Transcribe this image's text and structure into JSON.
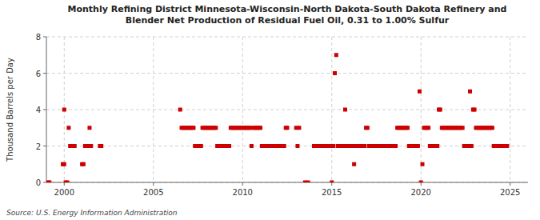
{
  "chart_data": {
    "type": "scatter",
    "title": "Monthly Refining District Minnesota-Wisconsin-North Dakota-South Dakota Refinery and\nBlender Net Production of Residual Fuel Oil, 0.31 to 1.00% Sulfur",
    "ylabel": "Thousand Barrels per Day",
    "source": "Source: U.S. Energy Information Administration",
    "xlim": [
      1999,
      2026
    ],
    "ylim": [
      0,
      8
    ],
    "xticks": [
      2000,
      2005,
      2010,
      2015,
      2020,
      2025
    ],
    "yticks": [
      0,
      2,
      4,
      6,
      8
    ],
    "grid": true,
    "color": "#cc0000",
    "marker": "square",
    "x": [
      1999.08,
      1999.17,
      1999.92,
      2000.0,
      2000.08,
      2000.17,
      2000.0,
      2000.25,
      2000.33,
      2000.42,
      2000.5,
      2000.58,
      2001.0,
      2001.08,
      2001.17,
      2001.25,
      2001.33,
      2001.42,
      2001.5,
      2002.0,
      2002.08,
      2006.5,
      2006.58,
      2006.67,
      2006.75,
      2006.83,
      2006.92,
      2007.0,
      2007.08,
      2007.17,
      2007.25,
      2007.33,
      2007.42,
      2007.5,
      2007.58,
      2007.67,
      2007.75,
      2007.83,
      2007.92,
      2008.0,
      2008.08,
      2008.17,
      2008.25,
      2008.33,
      2008.42,
      2008.5,
      2008.58,
      2008.67,
      2008.75,
      2008.83,
      2008.92,
      2009.0,
      2009.08,
      2009.17,
      2009.25,
      2009.33,
      2009.42,
      2009.5,
      2009.58,
      2009.67,
      2009.75,
      2009.83,
      2009.92,
      2010.0,
      2010.08,
      2010.17,
      2010.25,
      2010.33,
      2010.42,
      2010.5,
      2010.58,
      2010.67,
      2010.75,
      2010.83,
      2010.92,
      2011.0,
      2011.08,
      2011.17,
      2011.25,
      2011.33,
      2011.42,
      2011.5,
      2011.58,
      2011.67,
      2011.75,
      2011.83,
      2011.92,
      2012.0,
      2012.08,
      2012.17,
      2012.25,
      2012.33,
      2012.42,
      2012.5,
      2013.0,
      2013.08,
      2013.17,
      2013.5,
      2013.67,
      2014.0,
      2014.08,
      2014.17,
      2014.25,
      2014.33,
      2014.42,
      2014.5,
      2014.58,
      2014.67,
      2014.75,
      2014.83,
      2014.92,
      2015.0,
      2015.08,
      2015.17,
      2015.25,
      2015.33,
      2015.42,
      2015.5,
      2015.58,
      2015.67,
      2015.75,
      2015.83,
      2015.92,
      2016.0,
      2016.08,
      2016.17,
      2016.25,
      2016.33,
      2016.42,
      2016.5,
      2016.58,
      2016.67,
      2016.75,
      2016.83,
      2016.92,
      2017.0,
      2017.08,
      2017.17,
      2017.25,
      2017.33,
      2017.42,
      2017.5,
      2017.58,
      2017.67,
      2017.75,
      2017.83,
      2017.92,
      2018.0,
      2018.08,
      2018.17,
      2018.25,
      2018.33,
      2018.42,
      2018.5,
      2018.58,
      2018.67,
      2018.75,
      2018.83,
      2018.92,
      2019.0,
      2019.08,
      2019.17,
      2019.25,
      2019.33,
      2019.42,
      2019.5,
      2019.58,
      2019.67,
      2019.75,
      2019.83,
      2019.92,
      2020.0,
      2020.08,
      2020.17,
      2020.25,
      2020.33,
      2020.42,
      2020.5,
      2020.58,
      2020.67,
      2020.75,
      2020.83,
      2020.92,
      2021.0,
      2021.08,
      2021.17,
      2021.25,
      2021.33,
      2021.42,
      2021.5,
      2021.58,
      2021.67,
      2021.75,
      2021.83,
      2021.92,
      2022.0,
      2022.08,
      2022.17,
      2022.25,
      2022.33,
      2022.42,
      2022.5,
      2022.58,
      2022.67,
      2022.75,
      2022.83,
      2022.92,
      2023.0,
      2023.08,
      2023.17,
      2023.25,
      2023.33,
      2023.42,
      2023.5,
      2023.58,
      2023.67,
      2023.75,
      2023.83,
      2023.92,
      2024.0,
      2024.08,
      2024.17,
      2024.25,
      2024.33,
      2024.42,
      2024.5,
      2024.58,
      2024.67,
      2024.75,
      2024.83
    ],
    "values": [
      0,
      0,
      1,
      1,
      0,
      0,
      4,
      3,
      2,
      2,
      2,
      2,
      1,
      1,
      2,
      2,
      2,
      3,
      2,
      2,
      2,
      4,
      3,
      3,
      3,
      3,
      3,
      3,
      3,
      3,
      3,
      2,
      2,
      2,
      2,
      2,
      3,
      3,
      3,
      3,
      3,
      3,
      3,
      3,
      3,
      3,
      2,
      2,
      2,
      2,
      2,
      2,
      2,
      2,
      2,
      3,
      3,
      3,
      3,
      3,
      3,
      3,
      3,
      3,
      3,
      3,
      3,
      3,
      3,
      2,
      3,
      3,
      3,
      3,
      3,
      3,
      2,
      2,
      2,
      2,
      2,
      2,
      2,
      2,
      2,
      2,
      2,
      2,
      2,
      2,
      2,
      2,
      3,
      3,
      3,
      2,
      3,
      0,
      0,
      2,
      2,
      2,
      2,
      2,
      2,
      2,
      2,
      2,
      2,
      2,
      2,
      0,
      2,
      6,
      7,
      2,
      2,
      2,
      2,
      2,
      4,
      2,
      2,
      2,
      2,
      2,
      1,
      2,
      2,
      2,
      2,
      2,
      2,
      2,
      3,
      3,
      2,
      2,
      2,
      2,
      2,
      2,
      2,
      2,
      2,
      2,
      2,
      2,
      2,
      2,
      2,
      2,
      2,
      2,
      2,
      3,
      3,
      3,
      3,
      3,
      3,
      3,
      3,
      2,
      2,
      2,
      2,
      2,
      2,
      2,
      5,
      0,
      1,
      3,
      3,
      3,
      3,
      2,
      2,
      2,
      2,
      2,
      2,
      4,
      4,
      3,
      3,
      3,
      3,
      3,
      3,
      3,
      3,
      3,
      3,
      3,
      3,
      3,
      3,
      3,
      2,
      2,
      2,
      2,
      5,
      2,
      4,
      4,
      3,
      3,
      3,
      3,
      3,
      3,
      3,
      3,
      3,
      3,
      3,
      3,
      2,
      2,
      2,
      2,
      2,
      2,
      2,
      2,
      2,
      2
    ]
  }
}
